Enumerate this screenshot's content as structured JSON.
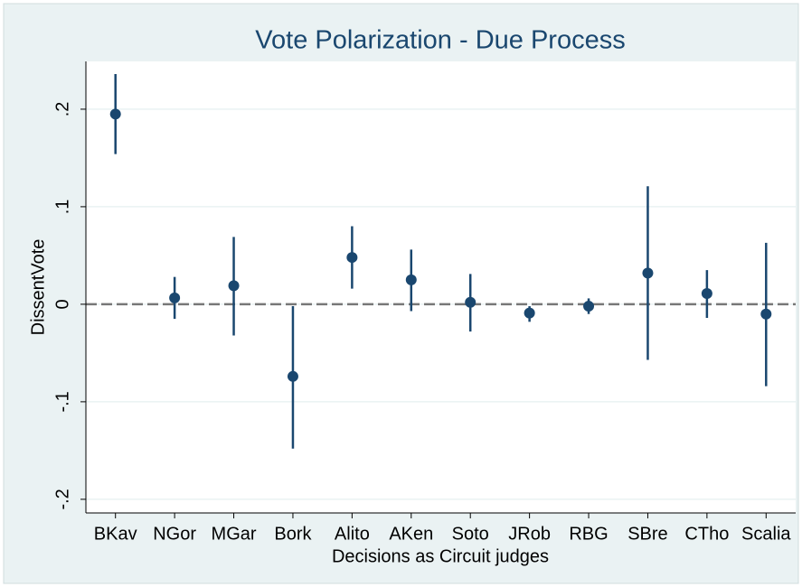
{
  "chart_data": {
    "type": "errorbar",
    "title": "Vote Polarization - Due Process",
    "x_label": "Decisions as Circuit judges",
    "y_label": "DissentVote",
    "categories": [
      "BKav",
      "NGor",
      "MGar",
      "Bork",
      "Alito",
      "AKen",
      "Soto",
      "JRob",
      "RBG",
      "SBre",
      "CTho",
      "Scalia"
    ],
    "values": [
      0.195,
      0.0065,
      0.019,
      -0.074,
      0.048,
      0.025,
      0.002,
      -0.009,
      -0.002,
      0.032,
      0.011,
      -0.01
    ],
    "lower": [
      0.154,
      -0.015,
      -0.032,
      -0.148,
      0.016,
      -0.007,
      -0.028,
      -0.018,
      -0.01,
      -0.057,
      -0.014,
      -0.084
    ],
    "upper": [
      0.236,
      0.028,
      0.069,
      -0.002,
      0.08,
      0.056,
      0.031,
      -0.002,
      0.006,
      0.121,
      0.035,
      0.063
    ],
    "color": "#1a476f",
    "ylim": [
      -0.214,
      0.249
    ],
    "yticks": [
      {
        "value": -0.2,
        "label": "-.2"
      },
      {
        "value": -0.1,
        "label": "-.1"
      },
      0,
      {
        "value": 0.1,
        "label": ".1"
      },
      {
        "value": 0.2,
        "label": ".2"
      }
    ],
    "reference_line": 0,
    "grid": true
  }
}
